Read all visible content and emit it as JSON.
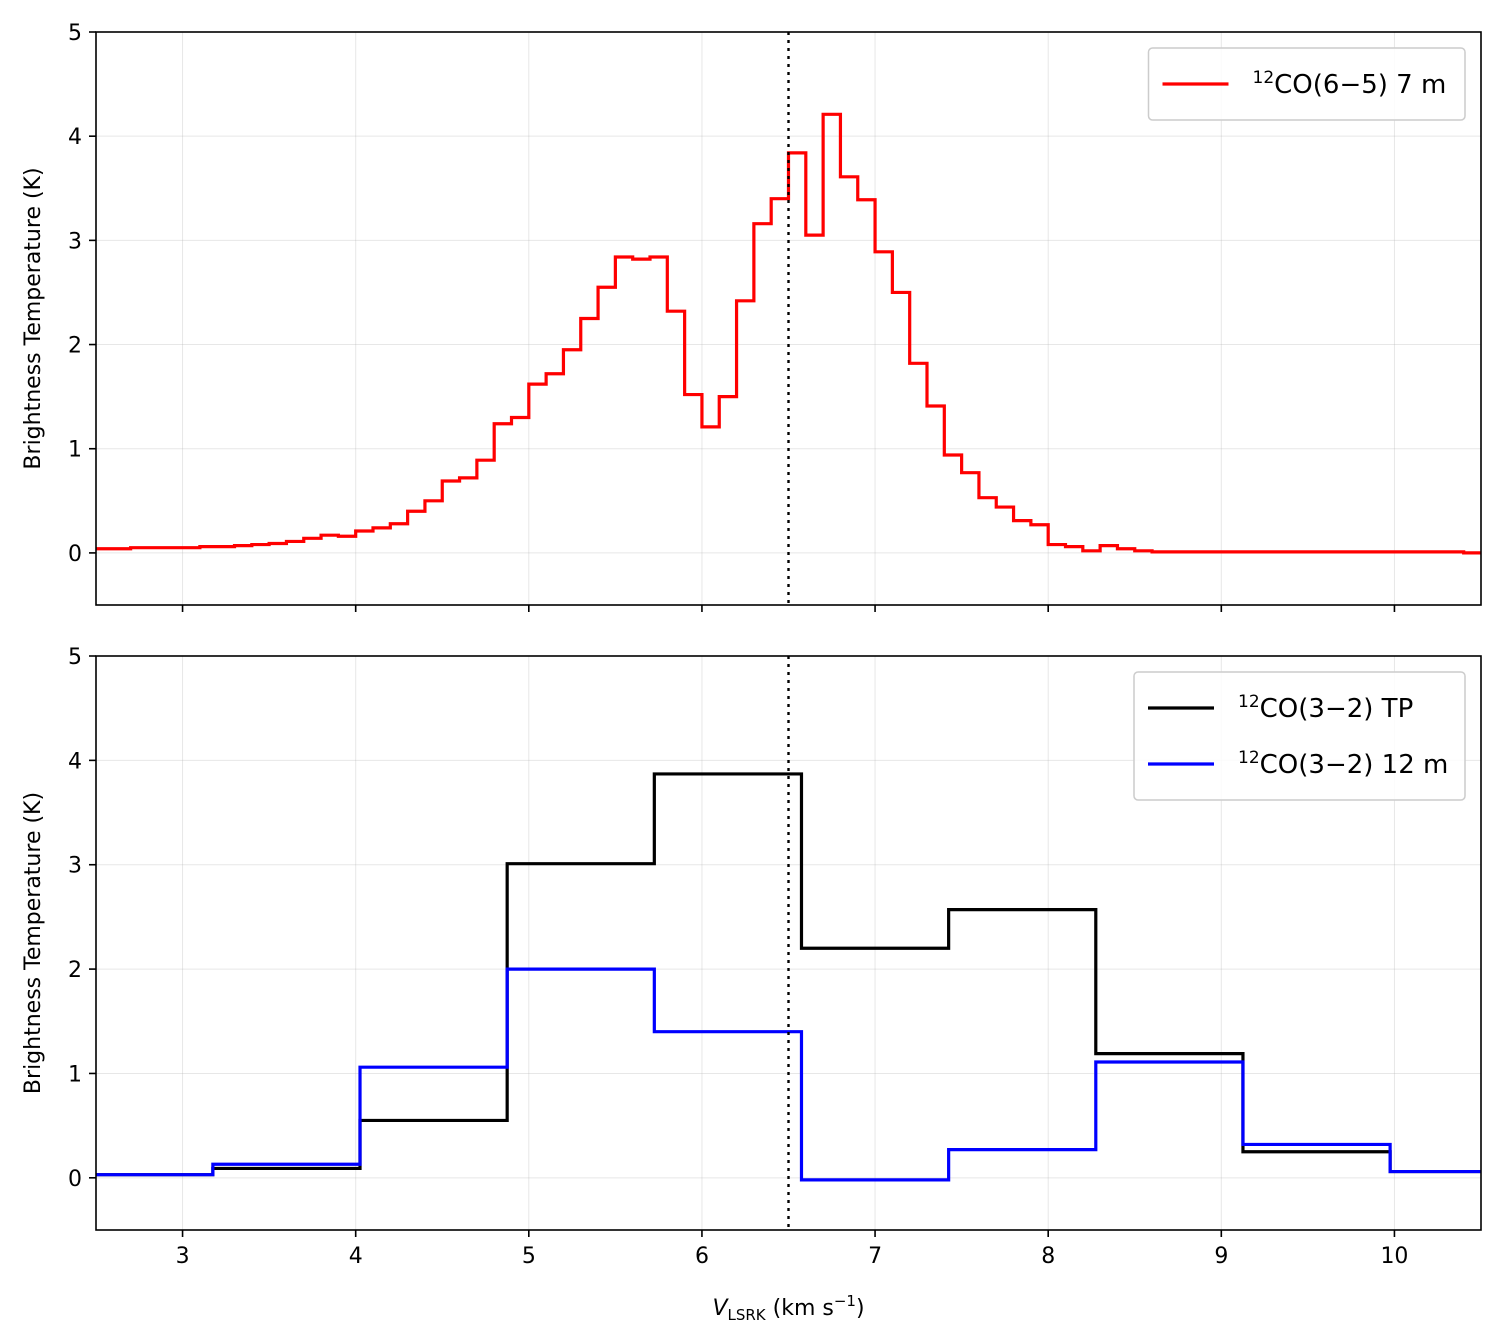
{
  "chart_data": [
    {
      "type": "line",
      "drawstyle": "steps-mid",
      "xlabel": "V_LSRK (km s^-1)",
      "ylabel": "Brightness Temperature (K)",
      "xlim": [
        2.5,
        10.5
      ],
      "ylim": [
        -0.5,
        5
      ],
      "xticks": [
        3,
        4,
        5,
        6,
        7,
        8,
        9,
        10
      ],
      "yticks": [
        0,
        1,
        2,
        3,
        4,
        5
      ],
      "show_xticklabels": false,
      "grid": true,
      "legend_position": "top-right",
      "vline": {
        "x": 6.5,
        "style": "dotted",
        "color": "#000000"
      },
      "series": [
        {
          "name": "12CO(6−5) 7 m",
          "color": "#ff0000",
          "x": [
            2.55,
            2.65,
            2.75,
            2.85,
            2.95,
            3.05,
            3.15,
            3.25,
            3.35,
            3.45,
            3.55,
            3.65,
            3.75,
            3.85,
            3.95,
            4.05,
            4.15,
            4.25,
            4.35,
            4.45,
            4.55,
            4.65,
            4.75,
            4.85,
            4.95,
            5.05,
            5.15,
            5.25,
            5.35,
            5.45,
            5.55,
            5.65,
            5.75,
            5.85,
            5.95,
            6.05,
            6.15,
            6.25,
            6.35,
            6.45,
            6.55,
            6.65,
            6.75,
            6.85,
            6.95,
            7.05,
            7.15,
            7.25,
            7.35,
            7.45,
            7.55,
            7.65,
            7.75,
            7.85,
            7.95,
            8.05,
            8.15,
            8.25,
            8.35,
            8.45,
            8.55,
            8.65,
            8.75,
            8.85,
            8.95,
            9.05,
            9.15,
            9.25,
            9.35,
            9.45,
            9.55,
            9.65,
            9.75,
            9.85,
            9.95,
            10.05,
            10.15,
            10.25,
            10.35,
            10.45
          ],
          "y": [
            0.04,
            0.04,
            0.05,
            0.05,
            0.05,
            0.05,
            0.06,
            0.06,
            0.07,
            0.08,
            0.09,
            0.11,
            0.14,
            0.17,
            0.16,
            0.21,
            0.24,
            0.28,
            0.4,
            0.5,
            0.69,
            0.72,
            0.89,
            1.24,
            1.3,
            1.62,
            1.72,
            1.95,
            2.25,
            2.55,
            2.84,
            2.82,
            2.84,
            2.32,
            1.52,
            1.21,
            1.5,
            2.42,
            3.16,
            3.4,
            3.84,
            3.05,
            4.21,
            3.61,
            3.39,
            2.89,
            2.5,
            1.82,
            1.41,
            0.94,
            0.77,
            0.53,
            0.44,
            0.31,
            0.27,
            0.08,
            0.06,
            0.02,
            0.07,
            0.04,
            0.02,
            0.01,
            0.01,
            0.01,
            0.01,
            0.01,
            0.01,
            0.01,
            0.01,
            0.01,
            0.01,
            0.01,
            0.01,
            0.01,
            0.01,
            0.01,
            0.01,
            0.01,
            0.01,
            0.0
          ]
        }
      ]
    },
    {
      "type": "line",
      "drawstyle": "steps-mid",
      "xlabel": "V_LSRK (km s^-1)",
      "ylabel": "Brightness Temperature (K)",
      "xlim": [
        2.5,
        10.5
      ],
      "ylim": [
        -0.5,
        5
      ],
      "xticks": [
        3,
        4,
        5,
        6,
        7,
        8,
        9,
        10
      ],
      "yticks": [
        0,
        1,
        2,
        3,
        4,
        5
      ],
      "show_xticklabels": true,
      "grid": true,
      "legend_position": "top-right",
      "vline": {
        "x": 6.5,
        "style": "dotted",
        "color": "#000000"
      },
      "series": [
        {
          "name": "12CO(3−2) TP",
          "color": "#000000",
          "x": [
            2.75,
            3.6,
            4.45,
            5.3,
            6.15,
            7.0,
            7.85,
            8.7,
            9.55,
            10.4
          ],
          "y": [
            0.03,
            0.09,
            0.55,
            3.01,
            3.87,
            2.2,
            2.57,
            1.19,
            0.25,
            0.06
          ]
        },
        {
          "name": "12CO(3−2) 12 m",
          "color": "#0000ff",
          "x": [
            2.75,
            3.6,
            4.45,
            5.3,
            6.15,
            7.0,
            7.85,
            8.7,
            9.55,
            10.4
          ],
          "y": [
            0.03,
            0.13,
            1.06,
            2.0,
            1.4,
            -0.02,
            0.27,
            1.11,
            0.32,
            0.06
          ]
        }
      ]
    }
  ]
}
